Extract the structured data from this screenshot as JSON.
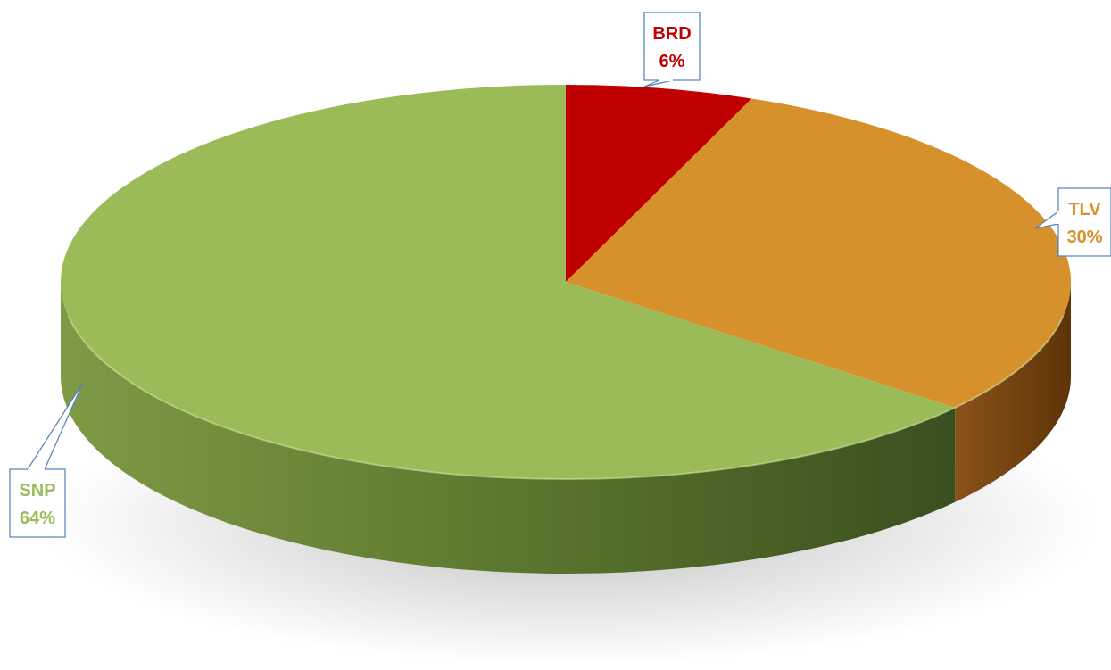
{
  "chart_data": {
    "type": "pie",
    "title": "",
    "categories": [
      "BRD",
      "TLV",
      "SNP"
    ],
    "values": [
      6,
      30,
      64
    ],
    "value_labels": [
      "6%",
      "30%",
      "64%"
    ],
    "colors": [
      "#c00000",
      "#d7912c",
      "#9bbb59"
    ],
    "side_colors": [
      "#7a0000",
      "#7a4612",
      "#5f7b30"
    ],
    "callout_border": "#4f81bd",
    "legend": "none"
  }
}
